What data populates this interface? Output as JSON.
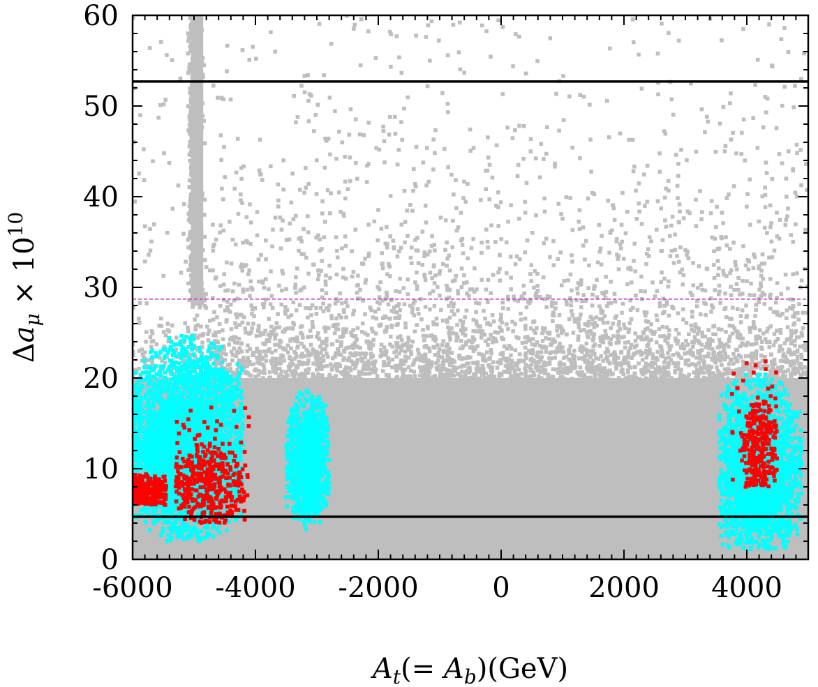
{
  "chart_data": {
    "type": "scatter",
    "title": "",
    "xlabel": "A_t(= A_b)(GeV)",
    "ylabel": "Δa_μ × 10^10",
    "xlim": [
      -6000,
      5000
    ],
    "ylim": [
      0,
      60
    ],
    "x_ticks": [
      "-6000",
      "-4000",
      "-2000",
      "0",
      "2000",
      "4000"
    ],
    "y_ticks": [
      "0",
      "10",
      "20",
      "30",
      "40",
      "50",
      "60"
    ],
    "grid": false,
    "legend": "none",
    "reference_lines": [
      {
        "y": 52.7,
        "style": "solid",
        "color": "#000000"
      },
      {
        "y": 28.7,
        "style": "dashed",
        "color": "#cc33cc"
      },
      {
        "y": 4.7,
        "style": "solid",
        "color": "#000000"
      }
    ],
    "series_colors": {
      "all_points": "#bebebe",
      "subset_1": "#00ffff",
      "subset_2": "#ff0000"
    },
    "regions": [
      {
        "series": "all_points",
        "x": [
          -6000,
          5000
        ],
        "y": [
          0,
          24
        ],
        "fill": "dense"
      },
      {
        "series": "all_points",
        "x": [
          -6000,
          5000
        ],
        "y": [
          20,
          60
        ],
        "fill": "sparse"
      },
      {
        "series": "all_points",
        "x": [
          -5050,
          -4850
        ],
        "y": [
          30,
          60
        ],
        "fill": "dense"
      },
      {
        "series": "subset_1",
        "x": [
          -6000,
          -4200
        ],
        "y": [
          2,
          25
        ]
      },
      {
        "series": "subset_1",
        "x": [
          -3500,
          -2800
        ],
        "y": [
          2,
          19
        ]
      },
      {
        "series": "subset_1",
        "x": [
          3550,
          4900
        ],
        "y": [
          1,
          22
        ]
      },
      {
        "series": "subset_2",
        "x": [
          -6000,
          -5450
        ],
        "y": [
          6,
          10
        ]
      },
      {
        "series": "subset_2",
        "x": [
          -5300,
          -4100
        ],
        "y": [
          4,
          17
        ]
      },
      {
        "series": "subset_2",
        "x": [
          3750,
          4500
        ],
        "y": [
          8,
          22
        ]
      }
    ]
  }
}
